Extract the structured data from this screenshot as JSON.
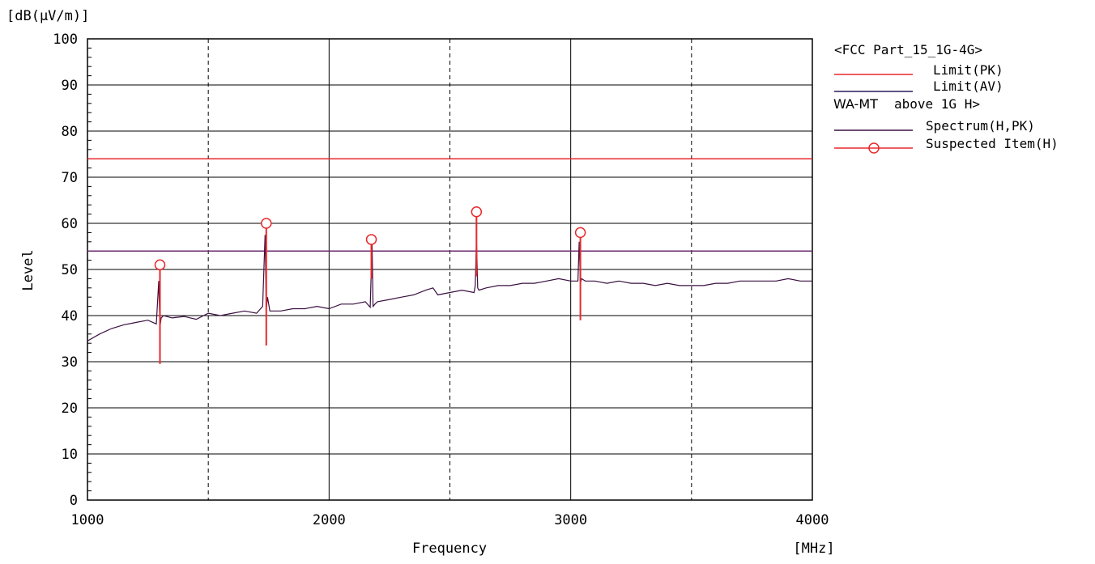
{
  "chart_data": {
    "type": "line",
    "unit_label": "[dB(μV/m)]",
    "xlabel": "Frequency",
    "xunit": "[MHz]",
    "ylabel": "Level",
    "xlim": [
      1000,
      4000
    ],
    "ylim": [
      0,
      100
    ],
    "x_ticks": [
      1000,
      2000,
      3000,
      4000
    ],
    "x_tick_labels": [
      "1000",
      "2000",
      "3000",
      "4000"
    ],
    "x_minor_dashed": [
      1500,
      2500,
      3500
    ],
    "y_ticks": [
      0,
      10,
      20,
      30,
      40,
      50,
      60,
      70,
      80,
      90,
      100
    ],
    "y_tick_labels": [
      "0",
      "10",
      "20",
      "30",
      "40",
      "50",
      "60",
      "70",
      "80",
      "90",
      "100"
    ],
    "grid": true,
    "legend_position": "right",
    "legend": {
      "group_title": "<FCC Part_15_1G-4G>",
      "entries": [
        {
          "label": "Limit(PK)",
          "color": "#e8282c",
          "marker": "line"
        },
        {
          "label": "Limit(AV)",
          "color": "#2a1a5e",
          "marker": "line"
        },
        {
          "label": "Spectrum(H,PK)",
          "color": "#3a1040",
          "marker": "line"
        },
        {
          "label": "Suspected Item(H)",
          "color": "#e8282c",
          "marker": "circle-line"
        }
      ],
      "group2_prefix": "WA-MT",
      "group2_title": "above 1G H>"
    },
    "limits": [
      {
        "name": "Limit(PK)",
        "value": 74,
        "color": "#e8282c"
      },
      {
        "name": "Limit(AV)",
        "value": 54,
        "color": "#6a2a6e"
      }
    ],
    "series": [
      {
        "name": "Spectrum(H,PK)",
        "color": "#3a1040",
        "x": [
          1000,
          1050,
          1100,
          1150,
          1200,
          1250,
          1285,
          1295,
          1300,
          1305,
          1315,
          1350,
          1400,
          1450,
          1500,
          1550,
          1600,
          1650,
          1700,
          1725,
          1735,
          1740,
          1745,
          1755,
          1800,
          1850,
          1900,
          1950,
          2000,
          2050,
          2100,
          2150,
          2170,
          2178,
          2182,
          2190,
          2200,
          2250,
          2300,
          2350,
          2400,
          2430,
          2450,
          2500,
          2550,
          2600,
          2605,
          2610,
          2615,
          2620,
          2650,
          2700,
          2750,
          2800,
          2850,
          2900,
          2950,
          3000,
          3030,
          3035,
          3040,
          3045,
          3060,
          3100,
          3150,
          3200,
          3250,
          3300,
          3350,
          3400,
          3450,
          3500,
          3550,
          3600,
          3650,
          3700,
          3750,
          3800,
          3850,
          3900,
          3950,
          4000
        ],
        "y": [
          34.5,
          36.0,
          37.2,
          38.0,
          38.5,
          39.0,
          38.2,
          47.5,
          37.5,
          39.5,
          40.0,
          39.5,
          39.8,
          39.2,
          40.5,
          40.0,
          40.5,
          41.0,
          40.5,
          42.0,
          57.5,
          41.5,
          44.0,
          41.0,
          41.0,
          41.5,
          41.5,
          42.0,
          41.5,
          42.5,
          42.5,
          43.0,
          41.8,
          56.0,
          42.0,
          42.5,
          43.0,
          43.5,
          44.0,
          44.5,
          45.5,
          46.0,
          44.5,
          45.0,
          45.5,
          45.0,
          46.5,
          56.5,
          46.0,
          45.5,
          46.0,
          46.5,
          46.5,
          47.0,
          47.0,
          47.5,
          48.0,
          47.5,
          47.5,
          56.0,
          47.0,
          48.0,
          47.5,
          47.5,
          47.0,
          47.5,
          47.0,
          47.0,
          46.5,
          47.0,
          46.5,
          46.5,
          46.5,
          47.0,
          47.0,
          47.5,
          47.5,
          47.5,
          47.5,
          48.0,
          47.5,
          47.5
        ]
      }
    ],
    "suspected_items": [
      {
        "x": 1300,
        "y": 51
      },
      {
        "x": 1740,
        "y": 60
      },
      {
        "x": 2175,
        "y": 56.5
      },
      {
        "x": 2610,
        "y": 62.5
      },
      {
        "x": 3040,
        "y": 58
      }
    ]
  }
}
